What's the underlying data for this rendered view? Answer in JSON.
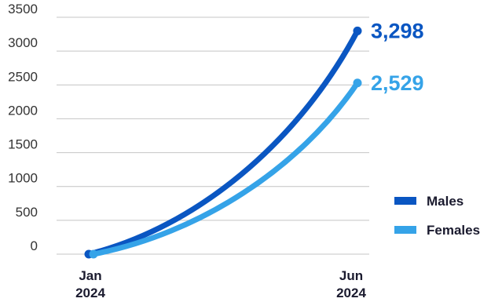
{
  "chart_data": {
    "type": "line",
    "x": [
      "Jan 2024",
      "Jun 2024"
    ],
    "x_tick_labels": [
      {
        "line1": "Jan",
        "line2": "2024"
      },
      {
        "line1": "Jun",
        "line2": "2024"
      }
    ],
    "y_ticks": [
      "0",
      "500",
      "1000",
      "1500",
      "2000",
      "2500",
      "3000",
      "3500"
    ],
    "ylim": [
      0,
      3500
    ],
    "grid": "horizontal",
    "legend_position": "right",
    "series": [
      {
        "name": "Males",
        "values": [
          0,
          3298
        ],
        "end_label": "3,298",
        "color": "#0a56c2"
      },
      {
        "name": "Females",
        "values": [
          0,
          2529
        ],
        "end_label": "2,529",
        "color": "#35a3e8"
      }
    ]
  }
}
